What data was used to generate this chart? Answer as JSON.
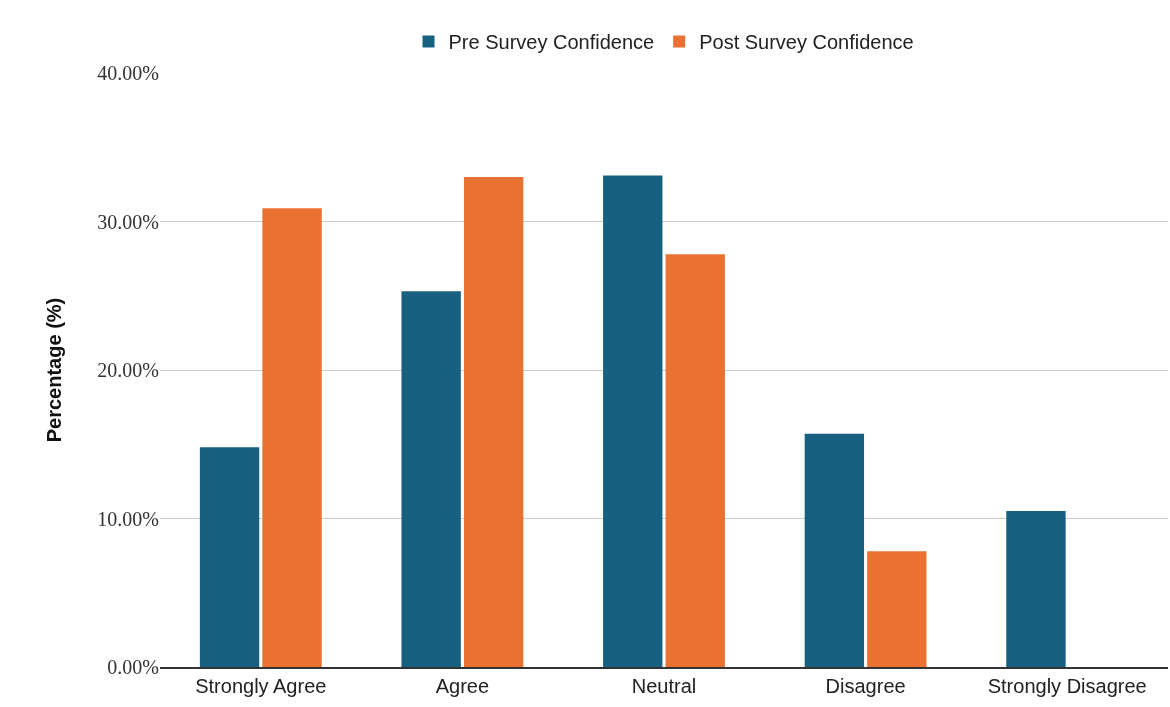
{
  "chart_data": {
    "type": "bar",
    "ylabel": "Percentage (%)",
    "categories": [
      "Strongly Agree",
      "Agree",
      "Neutral",
      "Disagree",
      "Strongly Disagree"
    ],
    "series": [
      {
        "name": "Pre Survey Confidence",
        "color": "#17607f",
        "values": [
          14.8,
          25.3,
          33.1,
          15.7,
          10.5
        ]
      },
      {
        "name": "Post Survey Confidence",
        "color": "#e97132",
        "values": [
          30.9,
          33.0,
          27.8,
          7.8,
          0
        ]
      }
    ],
    "ylim": [
      0,
      40
    ],
    "yticks": [
      {
        "value": 0,
        "label": "0.00%"
      },
      {
        "value": 10,
        "label": "10.00%"
      },
      {
        "value": 20,
        "label": "20.00%"
      },
      {
        "value": 30,
        "label": "30.00%"
      },
      {
        "value": 40,
        "label": "40.00%"
      }
    ],
    "grid": "y",
    "legend": "top"
  }
}
